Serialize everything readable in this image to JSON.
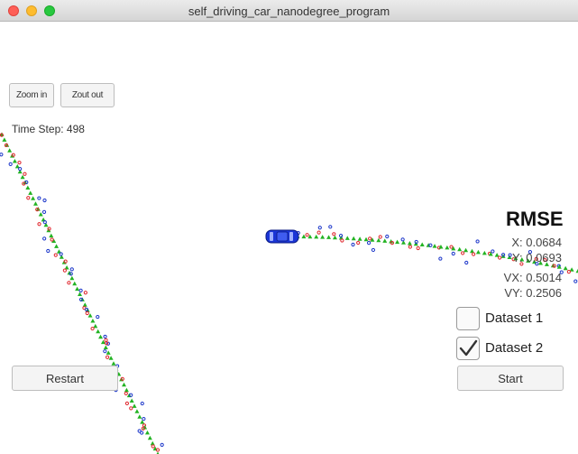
{
  "window": {
    "title": "self_driving_car_nanodegree_program"
  },
  "toolbar": {
    "zoom_in_label": "Zoom in",
    "zoom_out_label": "Zout out"
  },
  "status": {
    "time_step": "Time Step: 498"
  },
  "rmse": {
    "title": "RMSE",
    "x": "X: 0.0684",
    "y": "Y: 0.0693",
    "vx": "VX: 0.5014",
    "vy": "VY: 0.2506"
  },
  "datasets": [
    {
      "label": "Dataset 1",
      "checked": false
    },
    {
      "label": "Dataset 2",
      "checked": true
    }
  ],
  "controls": {
    "restart_label": "Restart",
    "start_label": "Start"
  },
  "colors": {
    "lidar": "#e0242b",
    "radar": "#1a35c9",
    "estimate": "#22b322",
    "car": "#1a35d6"
  }
}
